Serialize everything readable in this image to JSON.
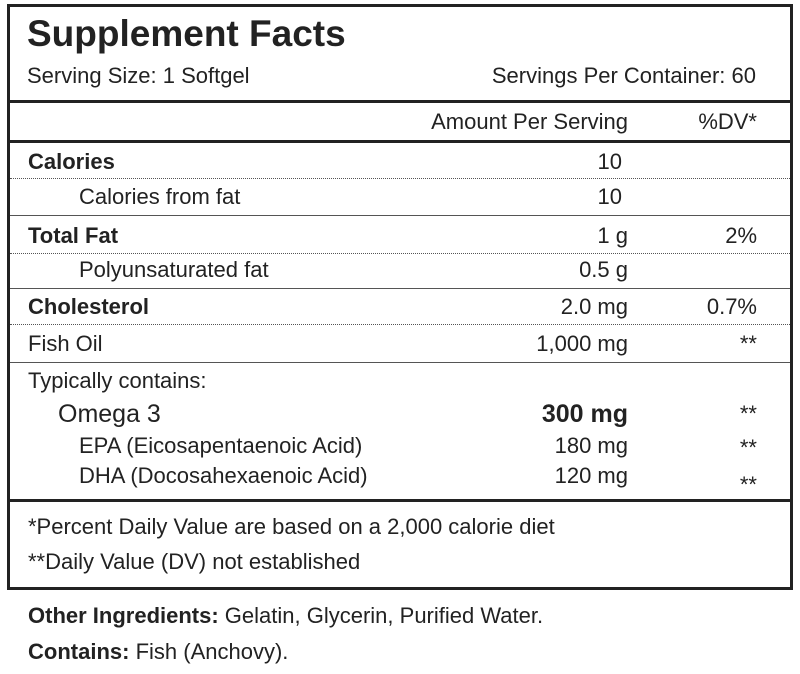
{
  "header": {
    "title": "Supplement Facts",
    "serving_size": "Serving Size: 1 Softgel",
    "servings_per_container": "Servings Per Container: 60"
  },
  "columns": {
    "amount": "Amount Per Serving",
    "dv": "%DV*"
  },
  "rows": [
    {
      "name": "Calories",
      "amount": "10"
    },
    {
      "name": "Calories from fat",
      "amount": "10"
    },
    {
      "name": "Total Fat",
      "amount": "1 g",
      "dv": "2%"
    },
    {
      "name": "Polyunsaturated fat",
      "amount": "0.5 g"
    },
    {
      "name": "Cholesterol",
      "amount": "2.0 mg",
      "dv": "0.7%"
    },
    {
      "name": "Fish Oil",
      "amount": "1,000 mg",
      "dv": "**"
    }
  ],
  "contains_heading": "Typically contains:",
  "contains": [
    {
      "name": "Omega 3",
      "amount": "300 mg",
      "dv": "**"
    },
    {
      "name": "EPA (Eicosapentaenoic Acid)",
      "amount": "180 mg",
      "dv": "**"
    },
    {
      "name": "DHA (Docosahexaenoic Acid)",
      "amount": "120 mg",
      "dv": "**"
    }
  ],
  "footnotes": [
    "*Percent Daily Value are based on a 2,000 calorie diet",
    "**Daily Value (DV) not established"
  ],
  "other_ingredients": {
    "label": "Other Ingredients:",
    "text": " Gelatin, Glycerin, Purified Water."
  },
  "allergens": {
    "label": "Contains:",
    "text": " Fish (Anchovy)."
  }
}
